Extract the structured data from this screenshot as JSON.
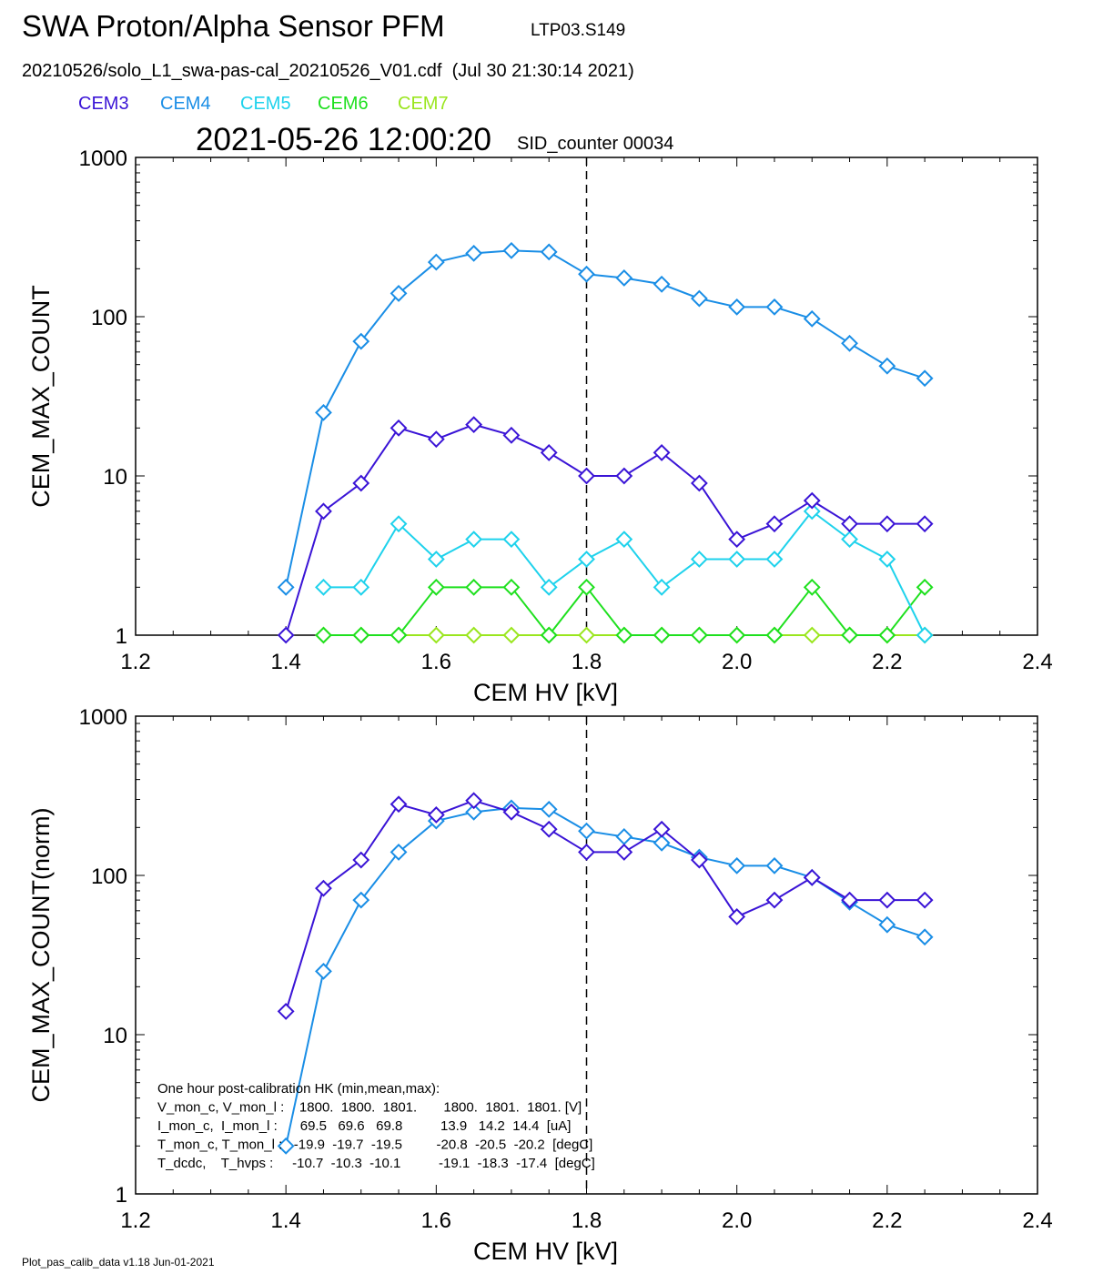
{
  "header": {
    "title": "SWA Proton/Alpha Sensor PFM",
    "tag": "LTP03.S149",
    "file_line": "20210526/solo_L1_swa-pas-cal_20210526_V01.cdf  (Jul 30 21:30:14 2021)",
    "timestamp": "2021-05-26 12:00:20",
    "sid": "SID_counter 00034"
  },
  "legend": [
    {
      "label": "CEM3",
      "color": "#3a14d6"
    },
    {
      "label": "CEM4",
      "color": "#1a8ee6"
    },
    {
      "label": "CEM5",
      "color": "#1ed2ec"
    },
    {
      "label": "CEM6",
      "color": "#1ee01e"
    },
    {
      "label": "CEM7",
      "color": "#9ae61e"
    }
  ],
  "footer": "Plot_pas_calib_data v1.18 Jun-01-2021",
  "chart_data": [
    {
      "type": "line",
      "xlabel": "CEM HV [kV]",
      "ylabel": "CEM_MAX_COUNT",
      "xlim": [
        1.2,
        2.4
      ],
      "ylim": [
        1,
        1000
      ],
      "yscale": "log",
      "xticks": [
        "1.2",
        "1.4",
        "1.6",
        "1.8",
        "2.0",
        "2.2",
        "2.4"
      ],
      "yticks": [
        "1",
        "10",
        "100",
        "1000"
      ],
      "vline": 1.8,
      "series": [
        {
          "name": "CEM3",
          "color": "#3a14d6",
          "x": [
            1.4,
            1.45,
            1.5,
            1.55,
            1.6,
            1.65,
            1.7,
            1.75,
            1.8,
            1.85,
            1.9,
            1.95,
            2.0,
            2.05,
            2.1,
            2.15,
            2.2,
            2.25
          ],
          "y": [
            1,
            6,
            9,
            20,
            17,
            21,
            18,
            14,
            10,
            10,
            14,
            9,
            4,
            5,
            7,
            5,
            5,
            5
          ]
        },
        {
          "name": "CEM4",
          "color": "#1a8ee6",
          "x": [
            1.4,
            1.45,
            1.5,
            1.55,
            1.6,
            1.65,
            1.7,
            1.75,
            1.8,
            1.85,
            1.9,
            1.95,
            2.0,
            2.05,
            2.1,
            2.15,
            2.2,
            2.25
          ],
          "y": [
            2,
            25,
            70,
            140,
            220,
            250,
            260,
            255,
            185,
            175,
            160,
            130,
            115,
            115,
            97,
            68,
            49,
            41
          ]
        },
        {
          "name": "CEM5",
          "color": "#1ed2ec",
          "x": [
            1.45,
            1.5,
            1.55,
            1.6,
            1.65,
            1.7,
            1.75,
            1.8,
            1.85,
            1.9,
            1.95,
            2.0,
            2.05,
            2.1,
            2.15,
            2.2,
            2.25
          ],
          "y": [
            2,
            2,
            5,
            3,
            4,
            4,
            2,
            3,
            4,
            2,
            3,
            3,
            3,
            6,
            4,
            3,
            1
          ]
        },
        {
          "name": "CEM6",
          "color": "#1ee01e",
          "x": [
            1.45,
            1.5,
            1.55,
            1.6,
            1.65,
            1.7,
            1.75,
            1.8,
            1.85,
            1.9,
            1.95,
            2.0,
            2.05,
            2.1,
            2.15,
            2.2,
            2.25
          ],
          "y": [
            1,
            1,
            1,
            2,
            2,
            2,
            1,
            2,
            1,
            1,
            1,
            1,
            1,
            2,
            1,
            1,
            2
          ]
        },
        {
          "name": "CEM7",
          "color": "#9ae61e",
          "x": [
            1.45,
            1.5,
            1.55,
            1.6,
            1.65,
            1.7,
            1.75,
            1.8,
            1.85,
            1.9,
            1.95,
            2.0,
            2.05,
            2.1,
            2.15,
            2.2,
            2.25
          ],
          "y": [
            1,
            1,
            1,
            1,
            1,
            1,
            1,
            1,
            1,
            1,
            1,
            1,
            1,
            1,
            1,
            1,
            1
          ]
        }
      ]
    },
    {
      "type": "line",
      "xlabel": "CEM HV [kV]",
      "ylabel": "CEM_MAX_COUNT(norm)",
      "xlim": [
        1.2,
        2.4
      ],
      "ylim": [
        1,
        1000
      ],
      "yscale": "log",
      "xticks": [
        "1.2",
        "1.4",
        "1.6",
        "1.8",
        "2.0",
        "2.2",
        "2.4"
      ],
      "yticks": [
        "1",
        "10",
        "100",
        "1000"
      ],
      "vline": 1.8,
      "series": [
        {
          "name": "CEM3",
          "color": "#3a14d6",
          "x": [
            1.4,
            1.45,
            1.5,
            1.55,
            1.6,
            1.65,
            1.7,
            1.75,
            1.8,
            1.85,
            1.9,
            1.95,
            2.0,
            2.05,
            2.1,
            2.15,
            2.2,
            2.25
          ],
          "y": [
            14,
            83,
            125,
            280,
            240,
            295,
            250,
            195,
            140,
            140,
            195,
            125,
            55,
            70,
            97,
            70,
            70,
            70
          ]
        },
        {
          "name": "CEM4",
          "color": "#1a8ee6",
          "x": [
            1.4,
            1.45,
            1.5,
            1.55,
            1.6,
            1.65,
            1.7,
            1.75,
            1.8,
            1.85,
            1.9,
            1.95,
            2.0,
            2.05,
            2.1,
            2.15,
            2.2,
            2.25
          ],
          "y": [
            2,
            25,
            70,
            140,
            220,
            250,
            265,
            260,
            190,
            175,
            160,
            130,
            115,
            115,
            97,
            68,
            49,
            41
          ]
        }
      ],
      "annotation": [
        "One hour post-calibration HK (min,mean,max):",
        "V_mon_c, V_mon_l :    1800.  1800.  1801.       1800.  1801.  1801. [V]",
        "I_mon_c,  I_mon_l :      69.5   69.6   69.8          13.9   14.2  14.4  [uA]",
        "T_mon_c, T_mon_l :   -19.9  -19.7  -19.5         -20.8  -20.5  -20.2  [degC]",
        "T_dcdc,    T_hvps :     -10.7  -10.3  -10.1          -19.1  -18.3  -17.4  [degC]"
      ]
    }
  ]
}
